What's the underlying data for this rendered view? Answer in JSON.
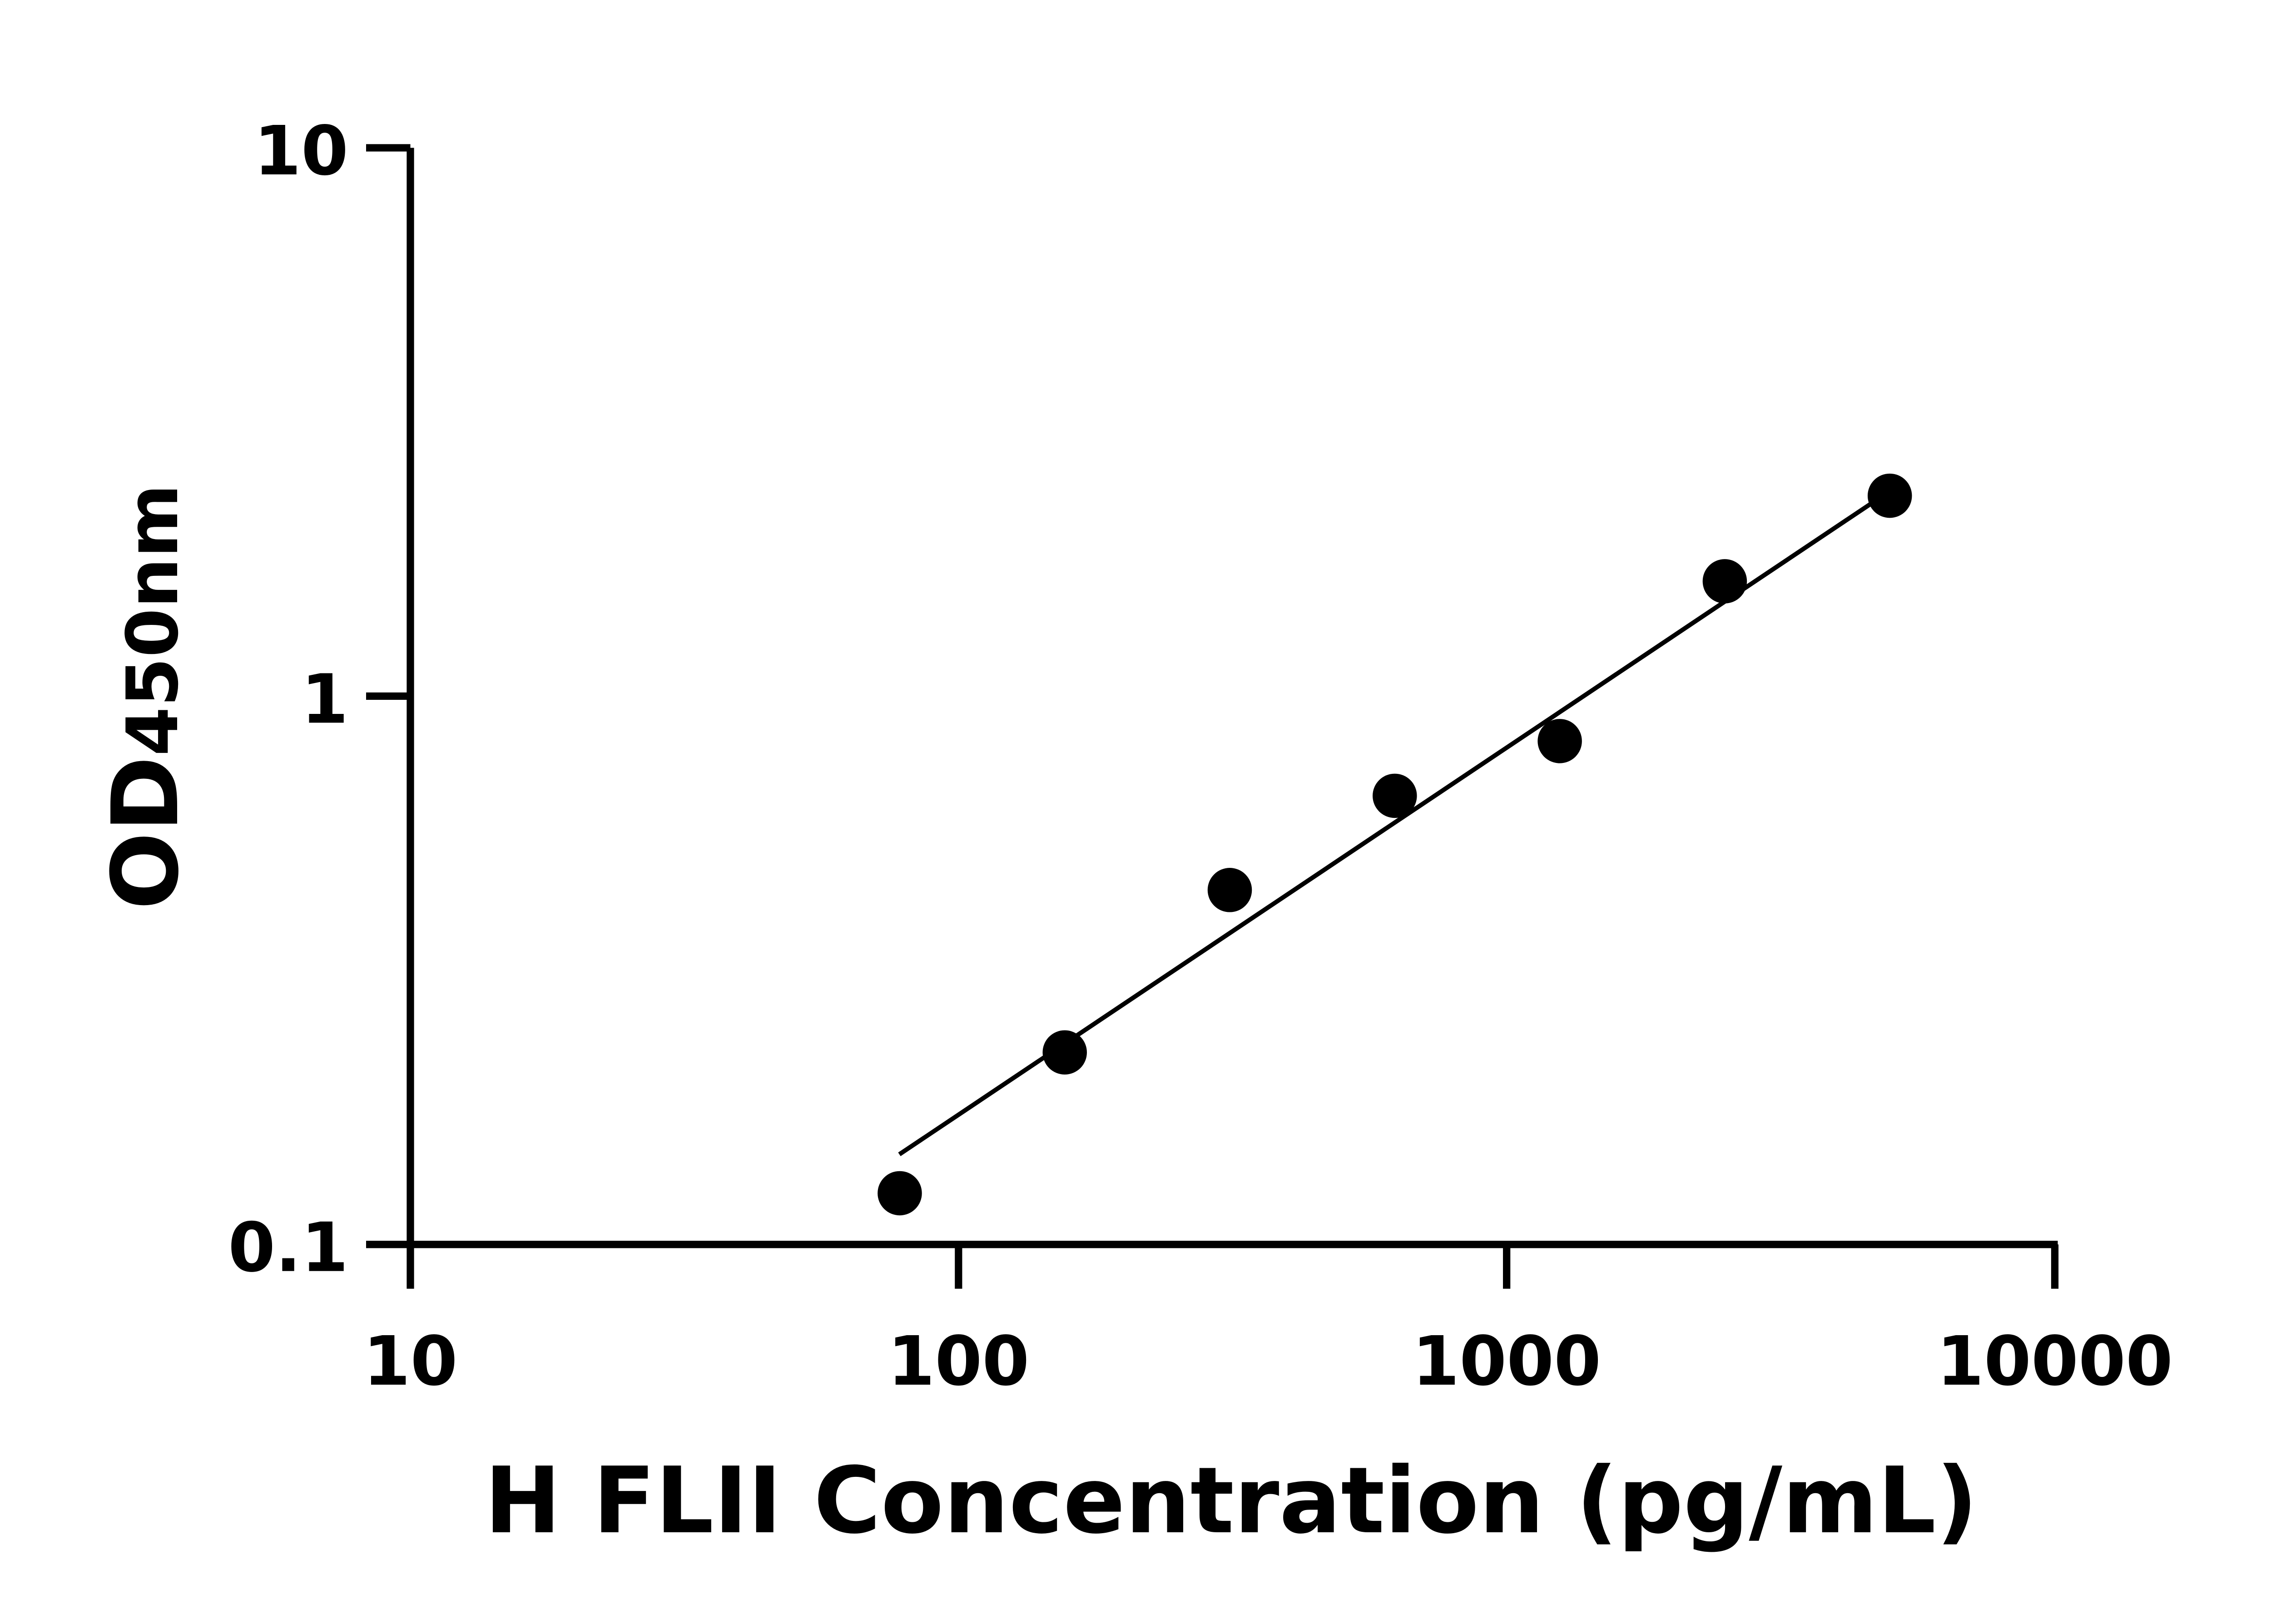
{
  "chart_data": {
    "type": "scatter",
    "title": "",
    "xlabel": "H FLII Concentration (pg/mL)",
    "ylabel_main": "OD",
    "ylabel_sub": "450nm",
    "x_scale": "log",
    "y_scale": "log",
    "xlim": [
      10,
      10000
    ],
    "ylim": [
      0.1,
      10
    ],
    "x_ticks": [
      10,
      100,
      1000,
      10000
    ],
    "x_tick_labels": [
      "10",
      "100",
      "1000",
      "10000"
    ],
    "y_ticks": [
      0.1,
      1,
      10
    ],
    "y_tick_labels": [
      "0.1",
      "1",
      "10"
    ],
    "grid": false,
    "points": {
      "x": [
        78.125,
        156.25,
        312.5,
        625,
        1250,
        2500,
        5000
      ],
      "y": [
        0.124,
        0.224,
        0.443,
        0.658,
        0.828,
        1.62,
        2.32
      ]
    },
    "fit_line": {
      "x": [
        78,
        4700
      ],
      "y": [
        0.146,
        2.27
      ]
    },
    "colors": {
      "marks": "#000000",
      "background": "#ffffff"
    }
  }
}
